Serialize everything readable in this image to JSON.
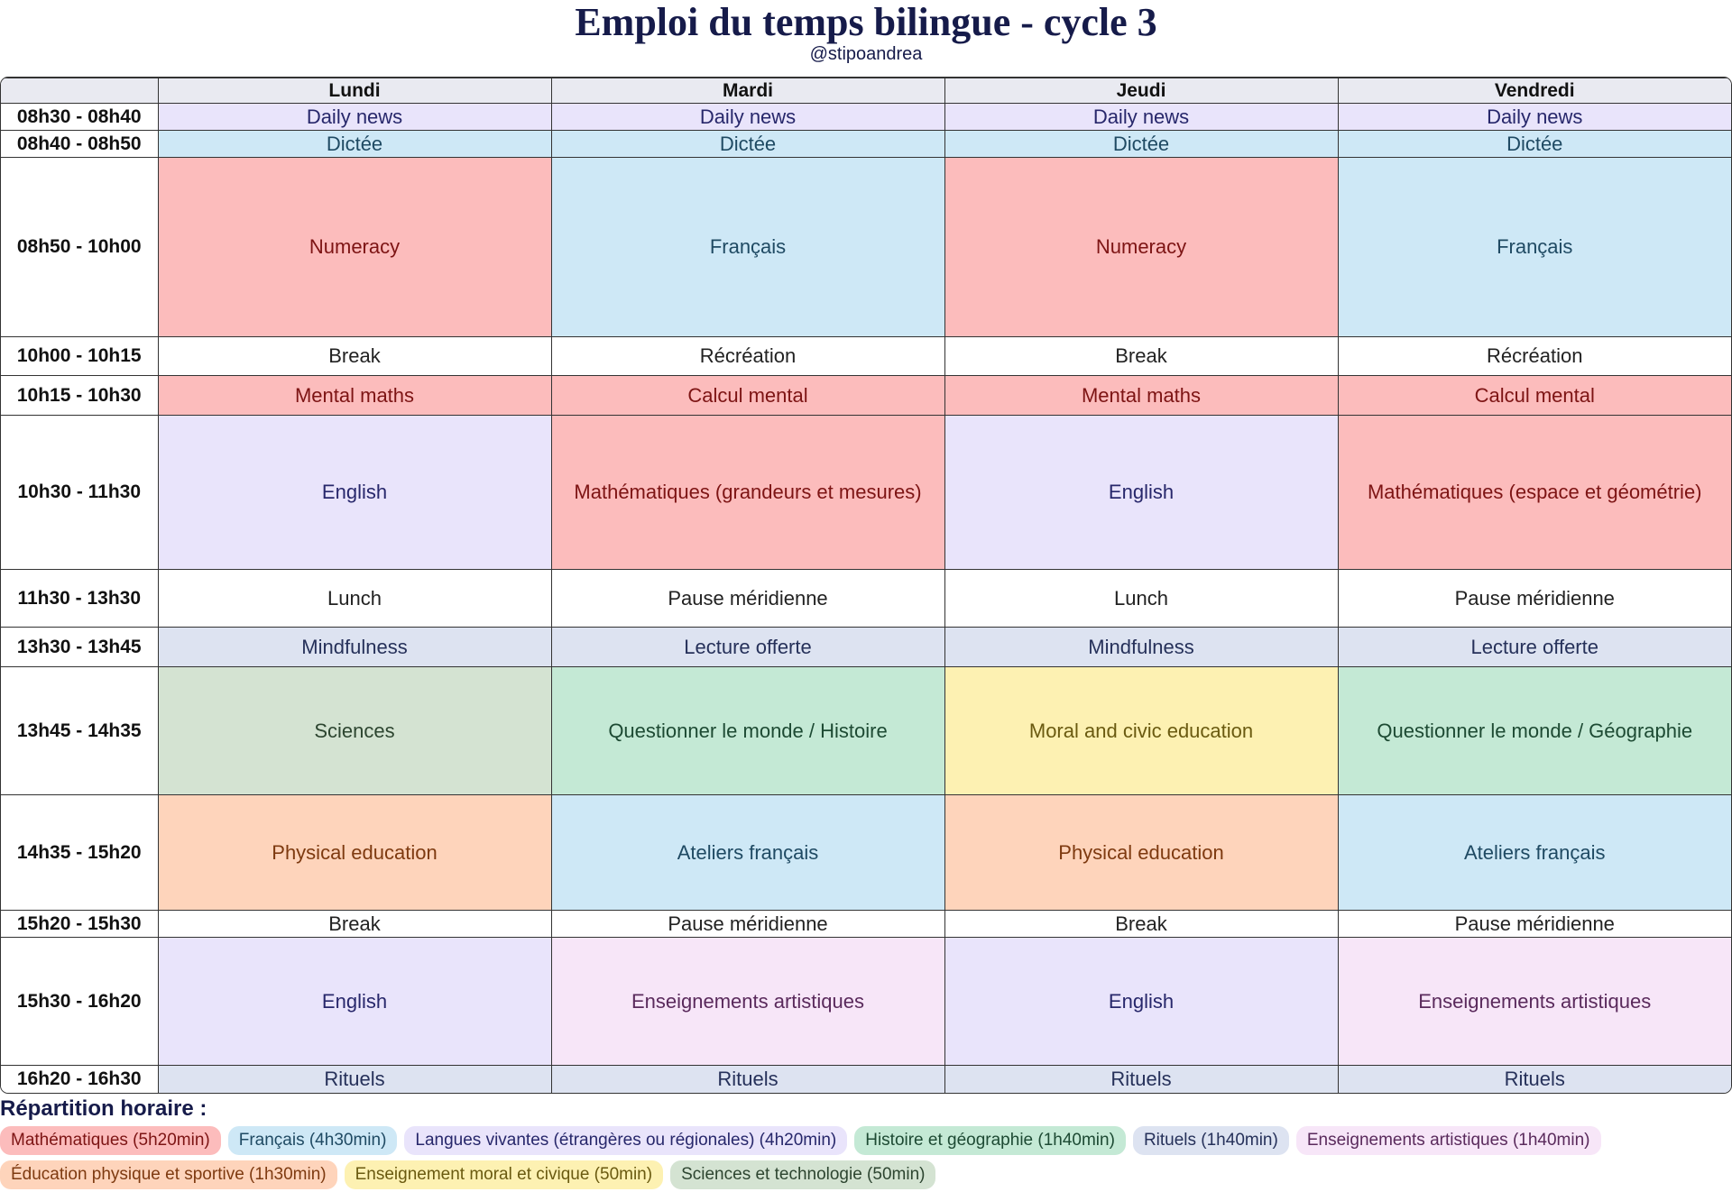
{
  "header": {
    "title": "Emploi du temps bilingue - cycle 3",
    "subtitle": "@stipoandrea"
  },
  "table": {
    "days": [
      "Lundi",
      "Mardi",
      "Jeudi",
      "Vendredi"
    ],
    "rows": [
      {
        "time": "08h30 - 08h40",
        "cells": [
          "Daily news",
          "Daily news",
          "Daily news",
          "Daily news"
        ]
      },
      {
        "time": "08h40 - 08h50",
        "cells": [
          "Dictée",
          "Dictée",
          "Dictée",
          "Dictée"
        ]
      },
      {
        "time": "08h50 - 10h00",
        "cells": [
          "Numeracy",
          "Français",
          "Numeracy",
          "Français"
        ]
      },
      {
        "time": "10h00 - 10h15",
        "cells": [
          "Break",
          "Récréation",
          "Break",
          "Récréation"
        ]
      },
      {
        "time": "10h15 - 10h30",
        "cells": [
          "Mental maths",
          "Calcul mental",
          "Mental maths",
          "Calcul mental"
        ]
      },
      {
        "time": "10h30 - 11h30",
        "cells": [
          "English",
          "Mathématiques (grandeurs et mesures)",
          "English",
          "Mathématiques (espace et géométrie)"
        ]
      },
      {
        "time": "11h30 - 13h30",
        "cells": [
          "Lunch",
          "Pause méridienne",
          "Lunch",
          "Pause méridienne"
        ]
      },
      {
        "time": "13h30 - 13h45",
        "cells": [
          "Mindfulness",
          "Lecture offerte",
          "Mindfulness",
          "Lecture offerte"
        ]
      },
      {
        "time": "13h45 - 14h35",
        "cells": [
          "Sciences",
          "Questionner le monde / Histoire",
          "Moral and civic education",
          "Questionner le monde / Géographie"
        ]
      },
      {
        "time": "14h35 - 15h20",
        "cells": [
          "Physical education",
          "Ateliers français",
          "Physical education",
          "Ateliers français"
        ]
      },
      {
        "time": "15h20 - 15h30",
        "cells": [
          "Break",
          "Pause méridienne",
          "Break",
          "Pause méridienne"
        ]
      },
      {
        "time": "15h30 - 16h20",
        "cells": [
          "English",
          "Enseignements artistiques",
          "English",
          "Enseignements artistiques"
        ]
      },
      {
        "time": "16h20 - 16h30",
        "cells": [
          "Rituels",
          "Rituels",
          "Rituels",
          "Rituels"
        ]
      }
    ]
  },
  "legend": {
    "title": "Répartition horaire :",
    "items": [
      "Mathématiques (5h20min)",
      "Français (4h30min)",
      "Langues vivantes (étrangères ou régionales) (4h20min)",
      "Histoire et géographie (1h40min)",
      "Rituels (1h40min)",
      "Enseignements artistiques (1h40min)",
      "Éducation physique et sportive (1h30min)",
      "Enseignement moral et civique (50min)",
      "Sciences et technologie (50min)"
    ]
  }
}
